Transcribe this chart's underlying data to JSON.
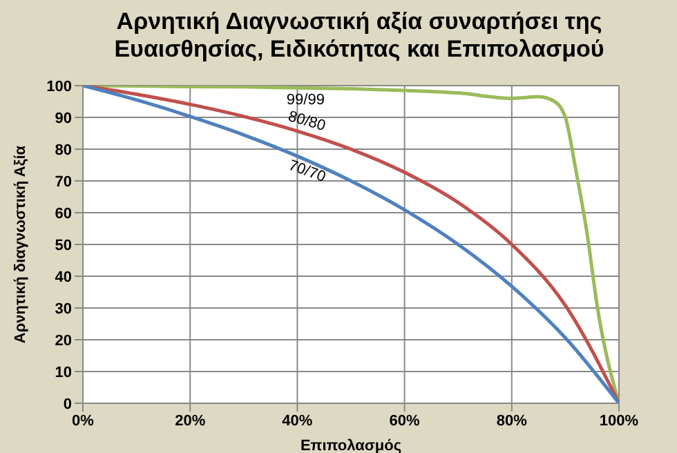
{
  "chart_data": {
    "type": "line",
    "title": "Αρνητική Διαγνωστική αξία συναρτήσει της Ευαισθησίας, Ειδικότητας και Επιπολασμού",
    "xlabel": "Επιπολασμός",
    "ylabel": "Αρνητική διαγνωστική Αξία",
    "series": [
      {
        "name": "99/99",
        "color": "#9bbb59",
        "x": [
          0,
          10,
          20,
          30,
          40,
          50,
          60,
          70,
          80,
          85,
          88,
          90,
          92,
          94,
          96,
          100
        ],
        "values": [
          100,
          99.9,
          99.7,
          99.6,
          99.3,
          99,
          98.5,
          97.7,
          96,
          96.5,
          95,
          90,
          73,
          54,
          30,
          0
        ]
      },
      {
        "name": "80/80",
        "color": "#c0504d",
        "x": [
          0,
          10,
          20,
          30,
          40,
          50,
          60,
          70,
          80,
          90,
          100
        ],
        "values": [
          100,
          97.3,
          94.1,
          90.3,
          85.7,
          80,
          72.7,
          63.2,
          50,
          30.8,
          0
        ]
      },
      {
        "name": "70/70",
        "color": "#4f81bd",
        "x": [
          0,
          10,
          20,
          30,
          40,
          50,
          60,
          70,
          80,
          90,
          100
        ],
        "values": [
          100,
          95.5,
          90.3,
          84.5,
          77.8,
          70,
          60.9,
          50,
          36.8,
          20.6,
          0
        ]
      }
    ],
    "xlim": [
      0,
      100
    ],
    "xticks": [
      {
        "value": 0,
        "label": "0%"
      },
      {
        "value": 20,
        "label": "20%"
      },
      {
        "value": 40,
        "label": "40%"
      },
      {
        "value": 60,
        "label": "60%"
      },
      {
        "value": 80,
        "label": "80%"
      },
      {
        "value": 100,
        "label": "100%"
      }
    ],
    "ylim": [
      0,
      100
    ],
    "yticks": [
      0,
      10,
      20,
      30,
      40,
      50,
      60,
      70,
      80,
      90,
      100
    ],
    "grid": true,
    "marker": "none",
    "line_style": "solid",
    "legend": false
  }
}
